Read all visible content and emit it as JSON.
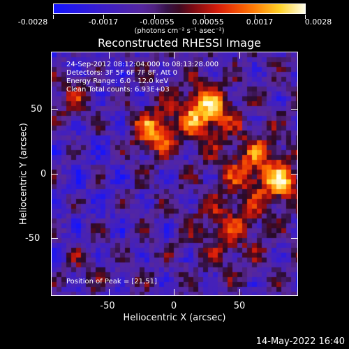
{
  "colorbar": {
    "tick_labels": [
      "-0.0028",
      "-0.0017",
      "-0.00055",
      "0.00055",
      "0.0017",
      "0.0028"
    ],
    "units": "(photons cm⁻² s⁻¹ asec⁻²)",
    "range": [
      -0.0028,
      0.0028
    ]
  },
  "plot": {
    "title": "Reconstructed RHESSI Image",
    "info_lines": [
      "24-Sep-2012 08:12:04.000 to 08:13:28.000",
      "Detectors: 3F 5F 6F 7F 8F, Att 0",
      "Energy Range: 6.0 - 12.0 keV",
      "Clean     Total counts: 6.93E+03"
    ],
    "peak_text": "Position of Peak = [21,51]",
    "x_label": "Heliocentric X (arcsec)",
    "y_label": "Heliocentric Y (arcsec)",
    "x_ticks": [
      "-50",
      "0",
      "50"
    ],
    "y_ticks": [
      "50",
      "0",
      "-50"
    ],
    "x_range": [
      -95,
      95
    ],
    "y_range": [
      -95,
      95
    ],
    "peak_position": [
      21,
      51
    ]
  },
  "timestamp": "14-May-2022 16:40"
}
